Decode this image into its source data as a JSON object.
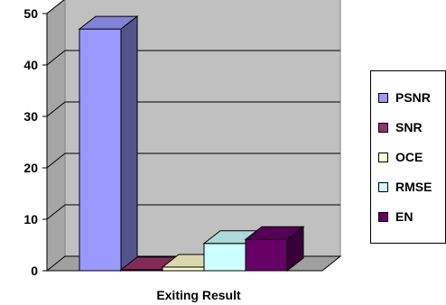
{
  "chart_data": {
    "type": "bar",
    "categories": [
      "Exiting Result"
    ],
    "series": [
      {
        "name": "PSNR",
        "values": [
          47
        ]
      },
      {
        "name": "SNR",
        "values": [
          0.2
        ]
      },
      {
        "name": "OCE",
        "values": [
          0.7
        ]
      },
      {
        "name": "RMSE",
        "values": [
          5.3
        ]
      },
      {
        "name": "EN",
        "values": [
          6.1
        ]
      }
    ],
    "xlabel": "Exiting Result",
    "ylabel": "",
    "ylim": [
      0,
      50
    ],
    "yticks": [
      0,
      10,
      20,
      30,
      40,
      50
    ],
    "grid": true,
    "legend_position": "right",
    "colors": {
      "PSNR": "#9999ff",
      "SNR": "#993366",
      "OCE": "#ffffcc",
      "RMSE": "#ccffff",
      "EN": "#660066",
      "wall": "#c0c0c0",
      "floor": "#a0a0a0"
    }
  }
}
